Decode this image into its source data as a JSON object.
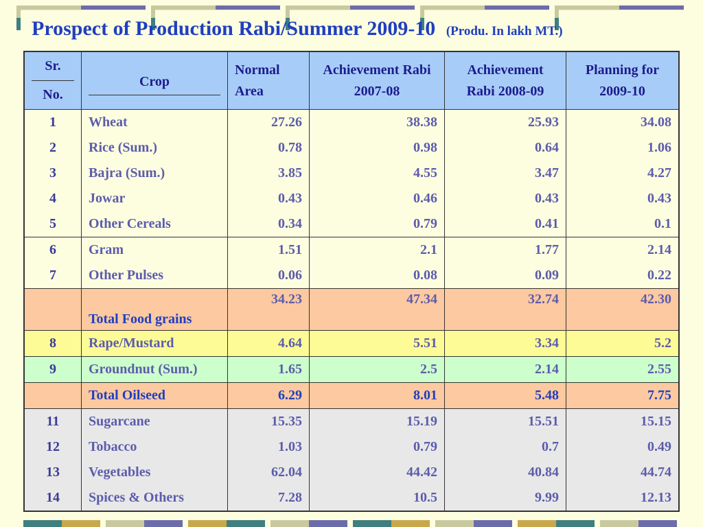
{
  "title": "Prospect of Production Rabi/Summer 2009-10",
  "subtitle": "(Produ. In lakh MT.)",
  "header": {
    "sr_line1": "Sr.",
    "sr_line2": "No.",
    "crop": "Crop",
    "normal_area": "Normal Area",
    "ach_0708": "Achievement Rabi 2007-08",
    "ach_0809": "Achievement Rabi 2008-09",
    "plan_0910": "Planning for 2009-10"
  },
  "rows": [
    {
      "sr": "1",
      "crop": "Wheat",
      "normal": "27.26",
      "a0708": "38.38",
      "a0809": "25.93",
      "p0910": "34.08"
    },
    {
      "sr": "2",
      "crop": "Rice (Sum.)",
      "normal": "0.78",
      "a0708": "0.98",
      "a0809": "0.64",
      "p0910": "1.06"
    },
    {
      "sr": "3",
      "crop": "Bajra (Sum.)",
      "normal": "3.85",
      "a0708": "4.55",
      "a0809": "3.47",
      "p0910": "4.27"
    },
    {
      "sr": "4",
      "crop": "Jowar",
      "normal": "0.43",
      "a0708": "0.46",
      "a0809": "0.43",
      "p0910": "0.43"
    },
    {
      "sr": "5",
      "crop": "Other Cereals",
      "normal": "0.34",
      "a0708": "0.79",
      "a0809": "0.41",
      "p0910": "0.1"
    },
    {
      "sr": "6",
      "crop": "Gram",
      "normal": "1.51",
      "a0708": "2.1",
      "a0809": "1.77",
      "p0910": "2.14"
    },
    {
      "sr": "7",
      "crop": "Other Pulses",
      "normal": "0.06",
      "a0708": "0.08",
      "a0809": "0.09",
      "p0910": "0.22"
    },
    {
      "sr": "",
      "crop": "Total Food grains",
      "normal": "34.23",
      "a0708": "47.34",
      "a0809": "32.74",
      "p0910": "42.30"
    },
    {
      "sr": "8",
      "crop": "Rape/Mustard",
      "normal": "4.64",
      "a0708": "5.51",
      "a0809": "3.34",
      "p0910": "5.2"
    },
    {
      "sr": "9",
      "crop": "Groundnut (Sum.)",
      "normal": "1.65",
      "a0708": "2.5",
      "a0809": "2.14",
      "p0910": "2.55"
    },
    {
      "sr": "",
      "crop": "Total Oilseed",
      "normal": "6.29",
      "a0708": "8.01",
      "a0809": "5.48",
      "p0910": "7.75"
    },
    {
      "sr": "11",
      "crop": "Sugarcane",
      "normal": "15.35",
      "a0708": "15.19",
      "a0809": "15.51",
      "p0910": "15.15"
    },
    {
      "sr": "12",
      "crop": "Tobacco",
      "normal": "1.03",
      "a0708": "0.79",
      "a0809": "0.7",
      "p0910": "0.49"
    },
    {
      "sr": "13",
      "crop": "Vegetables",
      "normal": "62.04",
      "a0708": "44.42",
      "a0809": "40.84",
      "p0910": "44.74"
    },
    {
      "sr": "14",
      "crop": "Spices & Others",
      "normal": "7.28",
      "a0708": "10.5",
      "a0809": "9.99",
      "p0910": "12.13"
    }
  ],
  "colors": {
    "title": "#1f3fbf",
    "header_bg": "#a8ccf8",
    "total_bg": "#fcc9a0",
    "rape_bg": "#fdfb96",
    "groundnut_bg": "#ccffcc",
    "other_bg": "#e8e8e8",
    "page_bg": "#fdfde0"
  }
}
